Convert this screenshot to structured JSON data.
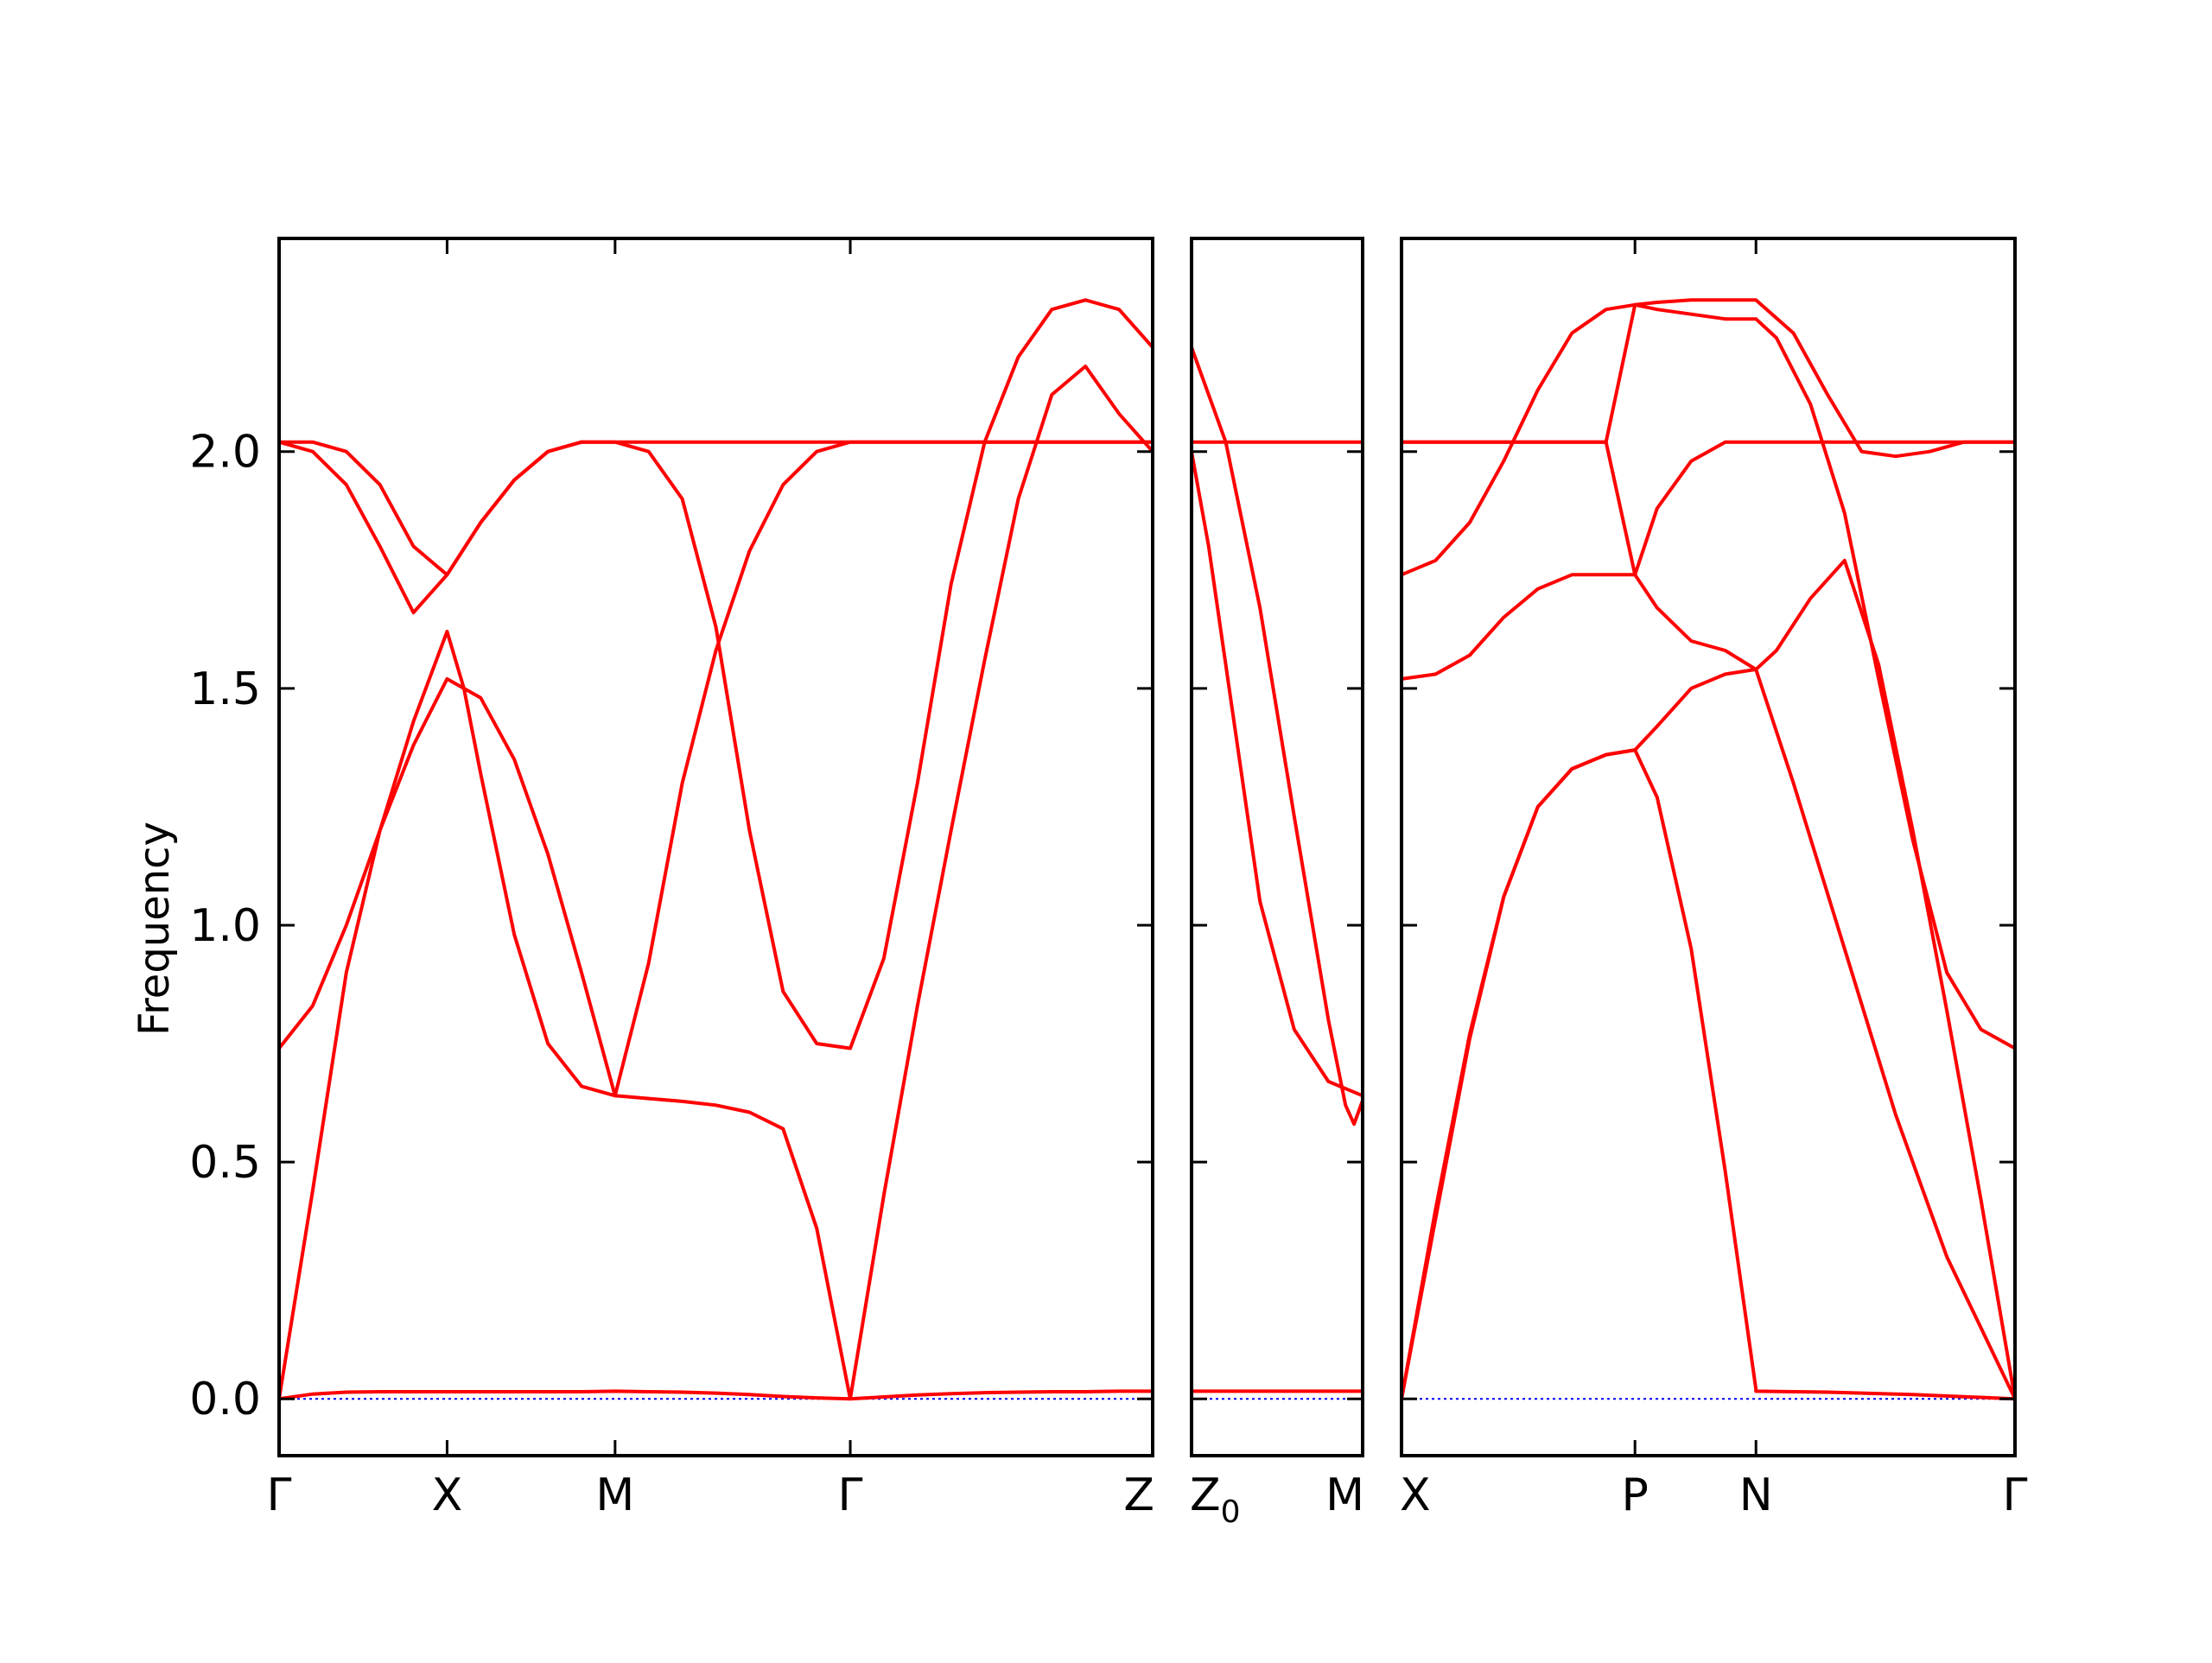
{
  "chart_data": {
    "type": "line",
    "title": "",
    "ylabel": "Frequency",
    "ylim": [
      -0.12,
      2.45
    ],
    "yticks": [
      "0.0",
      "0.5",
      "1.0",
      "1.5",
      "2.0"
    ],
    "ytick_values": [
      0.0,
      0.5,
      1.0,
      1.5,
      2.0
    ],
    "line_color": "#ff0000",
    "zero_line_color": "#0000ff",
    "panels": [
      {
        "xlim": [
          0,
          5.2
        ],
        "x_ticks": [
          0,
          1.0,
          2.0,
          3.4,
          5.2
        ],
        "x_labels": [
          "Γ",
          "X",
          "M",
          "Γ",
          "Z"
        ],
        "bands": [
          {
            "x": [
              0,
              0.2,
              0.4,
              0.6,
              0.8,
              1.0,
              1.2,
              1.4,
              1.6,
              1.8,
              2.0,
              2.2,
              2.4,
              2.6,
              2.8,
              3.0,
              3.2,
              3.4,
              3.6,
              3.8,
              4.0,
              4.2,
              4.4,
              4.6,
              4.8,
              5.0,
              5.2
            ],
            "y": [
              0.0,
              0.01,
              0.014,
              0.015,
              0.015,
              0.015,
              0.015,
              0.015,
              0.015,
              0.015,
              0.016,
              0.015,
              0.014,
              0.012,
              0.009,
              0.005,
              0.002,
              0.0,
              0.004,
              0.008,
              0.011,
              0.013,
              0.014,
              0.015,
              0.015,
              0.016,
              0.016
            ]
          },
          {
            "x": [
              0,
              0.2,
              0.4,
              0.6,
              0.8,
              1.0,
              1.1,
              1.2,
              1.4,
              1.6,
              1.8,
              2.0,
              2.2,
              2.4,
              2.6,
              2.8,
              3.0,
              3.2,
              3.4,
              3.6,
              3.8,
              4.0,
              4.2,
              4.4,
              4.6,
              4.8,
              5.0,
              5.2
            ],
            "y": [
              0.0,
              0.44,
              0.9,
              1.2,
              1.43,
              1.62,
              1.5,
              1.32,
              0.98,
              0.75,
              0.66,
              0.64,
              0.634,
              0.628,
              0.62,
              0.605,
              0.57,
              0.36,
              0.0,
              0.43,
              0.83,
              1.2,
              1.56,
              1.9,
              2.12,
              2.18,
              2.08,
              2.0
            ]
          },
          {
            "x": [
              0,
              0.2,
              0.4,
              0.6,
              0.8,
              1.0,
              1.2,
              1.4,
              1.6,
              1.8,
              2.0,
              2.2,
              2.4,
              2.6,
              2.8,
              3.0,
              3.2,
              3.4,
              3.6,
              3.8,
              4.0,
              4.2,
              4.4,
              4.6,
              4.8,
              5.0,
              5.2
            ],
            "y": [
              0.74,
              0.83,
              1.0,
              1.2,
              1.38,
              1.52,
              1.48,
              1.35,
              1.15,
              0.9,
              0.64,
              0.92,
              1.3,
              1.58,
              1.79,
              1.93,
              2.0,
              2.02,
              2.02,
              2.02,
              2.02,
              2.02,
              2.02,
              2.02,
              2.02,
              2.02,
              2.02
            ]
          },
          {
            "x": [
              0,
              0.2,
              0.4,
              0.6,
              0.8,
              1.0,
              1.2,
              1.4,
              1.6,
              1.8,
              2.0,
              2.2,
              2.4,
              2.6,
              2.8,
              3.0,
              3.2,
              3.4,
              3.6,
              3.8,
              4.0,
              4.2,
              4.4,
              4.6,
              4.8,
              5.0,
              5.2
            ],
            "y": [
              2.02,
              2.0,
              1.93,
              1.8,
              1.66,
              1.74,
              1.85,
              1.94,
              2.0,
              2.02,
              2.02,
              2.02,
              2.02,
              2.02,
              2.02,
              2.02,
              2.02,
              2.02,
              2.02,
              2.02,
              2.02,
              2.02,
              2.02,
              2.02,
              2.02,
              2.02,
              2.02
            ]
          },
          {
            "x": [
              0,
              0.2,
              0.4,
              0.6,
              0.8,
              1.0,
              1.2,
              1.4,
              1.6,
              1.8,
              2.0,
              2.2,
              2.4,
              2.6,
              2.8,
              3.0,
              3.2,
              3.4,
              3.6,
              3.8,
              4.0,
              4.2,
              4.4,
              4.6,
              4.8,
              5.0,
              5.2
            ],
            "y": [
              2.02,
              2.02,
              2.0,
              1.93,
              1.8,
              1.74,
              1.85,
              1.94,
              2.0,
              2.02,
              2.02,
              2.0,
              1.9,
              1.63,
              1.2,
              0.86,
              0.75,
              0.74,
              0.93,
              1.3,
              1.72,
              2.02,
              2.2,
              2.3,
              2.32,
              2.3,
              2.22
            ]
          }
        ]
      },
      {
        "xlim": [
          0,
          1.0
        ],
        "x_ticks": [
          0,
          1.0
        ],
        "x_labels": [
          "Z",
          "M"
        ],
        "x_label_subs": [
          "0",
          ""
        ],
        "bands": [
          {
            "x": [
              0,
              0.25,
              0.5,
              0.75,
              1.0
            ],
            "y": [
              0.016,
              0.016,
              0.016,
              0.016,
              0.016
            ]
          },
          {
            "x": [
              0,
              0.2,
              0.4,
              0.6,
              0.8,
              0.9,
              0.95,
              1.0
            ],
            "y": [
              2.22,
              2.02,
              1.67,
              1.23,
              0.8,
              0.62,
              0.58,
              0.63
            ]
          },
          {
            "x": [
              0,
              0.1,
              0.2,
              0.4,
              0.6,
              0.8,
              1.0
            ],
            "y": [
              2.0,
              1.8,
              1.55,
              1.05,
              0.78,
              0.67,
              0.64
            ]
          },
          {
            "x": [
              0,
              0.5,
              1.0
            ],
            "y": [
              2.02,
              2.02,
              2.02
            ]
          }
        ]
      },
      {
        "xlim": [
          0,
          3.6
        ],
        "x_ticks": [
          0,
          1.37,
          2.08,
          3.6
        ],
        "x_labels": [
          "X",
          "P",
          "N",
          "Γ"
        ],
        "bands": [
          {
            "x": [
              0,
              0.2,
              0.4,
              0.6,
              0.8,
              1.0,
              1.2,
              1.37,
              1.5,
              1.7,
              1.9,
              2.08,
              2.08,
              2.5,
              3.0,
              3.6
            ],
            "y": [
              0.0,
              0.38,
              0.76,
              1.06,
              1.25,
              1.33,
              1.36,
              1.37,
              1.27,
              0.95,
              0.48,
              0.02,
              0.016,
              0.014,
              0.009,
              0.0
            ]
          },
          {
            "x": [
              0,
              0.2,
              0.4,
              0.6,
              0.8,
              1.0,
              1.2,
              1.37,
              1.5,
              1.7,
              1.9,
              2.08,
              2.3,
              2.6,
              2.9,
              3.2,
              3.6
            ],
            "y": [
              1.52,
              1.53,
              1.57,
              1.65,
              1.71,
              1.74,
              1.74,
              1.74,
              1.67,
              1.6,
              1.58,
              1.54,
              1.3,
              0.95,
              0.6,
              0.3,
              0.0
            ]
          },
          {
            "x": [
              0,
              0.2,
              0.4,
              0.6,
              0.8,
              1.0,
              1.2,
              1.37,
              1.5,
              1.7,
              1.9,
              2.08,
              2.2,
              2.4,
              2.6,
              2.8,
              3.0,
              3.2,
              3.4,
              3.6
            ],
            "y": [
              1.74,
              1.77,
              1.85,
              1.98,
              2.13,
              2.25,
              2.3,
              2.31,
              2.3,
              2.29,
              2.28,
              2.28,
              2.24,
              2.1,
              1.87,
              1.52,
              1.18,
              0.9,
              0.78,
              0.74
            ]
          },
          {
            "x": [
              0,
              0.2,
              0.4,
              0.6,
              0.8,
              1.0,
              1.2,
              1.37,
              1.5,
              1.7,
              1.9,
              2.08,
              2.2,
              2.4,
              2.6,
              2.8,
              3.0,
              3.2,
              3.4,
              3.6
            ],
            "y": [
              0.0,
              0.4,
              0.77,
              1.06,
              1.25,
              1.33,
              1.36,
              1.37,
              1.42,
              1.5,
              1.53,
              1.54,
              1.58,
              1.69,
              1.77,
              1.55,
              1.2,
              0.82,
              0.42,
              0.0
            ]
          },
          {
            "x": [
              0,
              0.3,
              0.6,
              0.9,
              1.2,
              1.37,
              1.5,
              1.7,
              1.9,
              2.08,
              2.3,
              2.5,
              2.7,
              2.9,
              3.1,
              3.3,
              3.6
            ],
            "y": [
              2.02,
              2.02,
              2.02,
              2.02,
              2.02,
              1.74,
              1.88,
              1.98,
              2.02,
              2.02,
              2.02,
              2.02,
              2.02,
              2.02,
              2.02,
              2.02,
              2.02
            ]
          },
          {
            "x": [
              0,
              0.3,
              0.6,
              0.9,
              1.2,
              1.37,
              1.5,
              1.7,
              1.9,
              2.08,
              2.3,
              2.5,
              2.7,
              2.9,
              3.1,
              3.3,
              3.6
            ],
            "y": [
              2.02,
              2.02,
              2.02,
              2.02,
              2.02,
              2.31,
              2.315,
              2.32,
              2.32,
              2.32,
              2.25,
              2.12,
              2.0,
              1.99,
              2.0,
              2.02,
              2.02
            ]
          }
        ]
      }
    ]
  }
}
